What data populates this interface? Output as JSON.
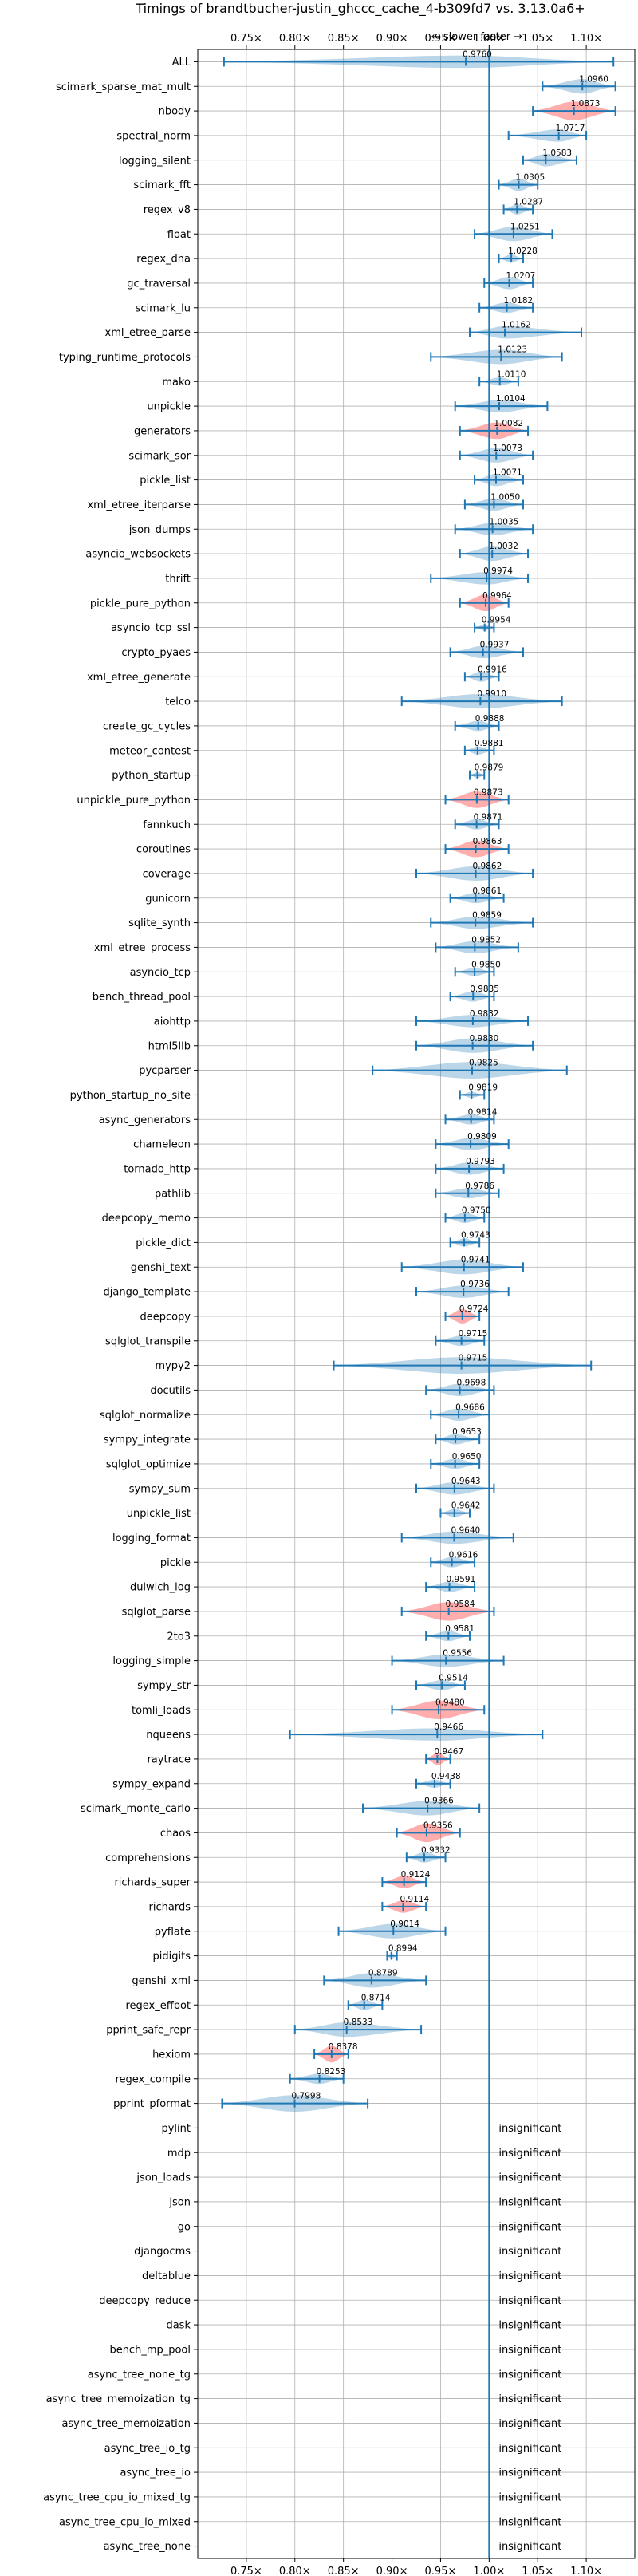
{
  "chart_data": {
    "type": "violin",
    "title": "Timings of brandtbucher-justin_ghccc_cache_4-b309fd7 vs. 3.13.0a6+",
    "annotation": "← slower    faster →",
    "xlim": [
      0.7,
      1.15
    ],
    "x_ticks": [
      0.75,
      0.8,
      0.85,
      0.9,
      0.95,
      1.0,
      1.05,
      1.1
    ],
    "x_tick_labels": [
      "0.75×",
      "0.80×",
      "0.85×",
      "0.90×",
      "0.95×",
      "1.00×",
      "1.05×",
      "1.10×"
    ],
    "grid": true,
    "reference_line": 1.0,
    "colors": {
      "faster": "#1f77b4",
      "slower": "#ff0000",
      "errorbar": "#1f77b4"
    },
    "insignificant_label": "insignificant",
    "benchmarks": [
      {
        "name": "ALL",
        "value": 0.976,
        "label": "0.9760",
        "ci": [
          0.727,
          1.128
        ],
        "width": 0.6,
        "slower": false
      },
      {
        "name": "scimark_sparse_mat_mult",
        "value": 1.096,
        "label": "1.0960",
        "ci": [
          1.055,
          1.13
        ],
        "width": 0.7,
        "slower": false
      },
      {
        "name": "nbody",
        "value": 1.0873,
        "label": "1.0873",
        "ci": [
          1.045,
          1.13
        ],
        "width": 0.9,
        "slower": true
      },
      {
        "name": "spectral_norm",
        "value": 1.0717,
        "label": "1.0717",
        "ci": [
          1.02,
          1.1
        ],
        "width": 0.6,
        "slower": false
      },
      {
        "name": "logging_silent",
        "value": 1.0583,
        "label": "1.0583",
        "ci": [
          1.035,
          1.09
        ],
        "width": 0.6,
        "slower": false
      },
      {
        "name": "scimark_fft",
        "value": 1.0305,
        "label": "1.0305",
        "ci": [
          1.01,
          1.05
        ],
        "width": 0.6,
        "slower": false
      },
      {
        "name": "regex_v8",
        "value": 1.0287,
        "label": "1.0287",
        "ci": [
          1.015,
          1.045
        ],
        "width": 0.5,
        "slower": false
      },
      {
        "name": "float",
        "value": 1.0251,
        "label": "1.0251",
        "ci": [
          0.985,
          1.065
        ],
        "width": 0.7,
        "slower": false
      },
      {
        "name": "regex_dna",
        "value": 1.0228,
        "label": "1.0228",
        "ci": [
          1.01,
          1.035
        ],
        "width": 0.4,
        "slower": false
      },
      {
        "name": "gc_traversal",
        "value": 1.0207,
        "label": "1.0207",
        "ci": [
          0.995,
          1.045
        ],
        "width": 0.6,
        "slower": false
      },
      {
        "name": "scimark_lu",
        "value": 1.0182,
        "label": "1.0182",
        "ci": [
          0.99,
          1.045
        ],
        "width": 0.5,
        "slower": false
      },
      {
        "name": "xml_etree_parse",
        "value": 1.0162,
        "label": "1.0162",
        "ci": [
          0.98,
          1.095
        ],
        "width": 0.6,
        "slower": false
      },
      {
        "name": "typing_runtime_protocols",
        "value": 1.0123,
        "label": "1.0123",
        "ci": [
          0.94,
          1.075
        ],
        "width": 0.7,
        "slower": false
      },
      {
        "name": "mako",
        "value": 1.011,
        "label": "1.0110",
        "ci": [
          0.99,
          1.03
        ],
        "width": 0.4,
        "slower": false
      },
      {
        "name": "unpickle",
        "value": 1.0104,
        "label": "1.0104",
        "ci": [
          0.965,
          1.06
        ],
        "width": 0.6,
        "slower": false
      },
      {
        "name": "generators",
        "value": 1.0082,
        "label": "1.0082",
        "ci": [
          0.97,
          1.04
        ],
        "width": 0.8,
        "slower": true
      },
      {
        "name": "scimark_sor",
        "value": 1.0073,
        "label": "1.0073",
        "ci": [
          0.97,
          1.045
        ],
        "width": 0.7,
        "slower": false
      },
      {
        "name": "pickle_list",
        "value": 1.0071,
        "label": "1.0071",
        "ci": [
          0.985,
          1.035
        ],
        "width": 0.6,
        "slower": false
      },
      {
        "name": "xml_etree_iterparse",
        "value": 1.005,
        "label": "1.0050",
        "ci": [
          0.975,
          1.035
        ],
        "width": 0.6,
        "slower": false
      },
      {
        "name": "json_dumps",
        "value": 1.0035,
        "label": "1.0035",
        "ci": [
          0.965,
          1.045
        ],
        "width": 0.6,
        "slower": false
      },
      {
        "name": "asyncio_websockets",
        "value": 1.0032,
        "label": "1.0032",
        "ci": [
          0.97,
          1.04
        ],
        "width": 0.7,
        "slower": false
      },
      {
        "name": "thrift",
        "value": 0.9974,
        "label": "0.9974",
        "ci": [
          0.94,
          1.04
        ],
        "width": 0.6,
        "slower": false
      },
      {
        "name": "pickle_pure_python",
        "value": 0.9964,
        "label": "0.9964",
        "ci": [
          0.97,
          1.02
        ],
        "width": 0.8,
        "slower": true
      },
      {
        "name": "asyncio_tcp_ssl",
        "value": 0.9954,
        "label": "0.9954",
        "ci": [
          0.985,
          1.005
        ],
        "width": 0.3,
        "slower": false
      },
      {
        "name": "crypto_pyaes",
        "value": 0.9937,
        "label": "0.9937",
        "ci": [
          0.96,
          1.035
        ],
        "width": 0.6,
        "slower": false
      },
      {
        "name": "xml_etree_generate",
        "value": 0.9916,
        "label": "0.9916",
        "ci": [
          0.975,
          1.01
        ],
        "width": 0.5,
        "slower": false
      },
      {
        "name": "telco",
        "value": 0.991,
        "label": "0.9910",
        "ci": [
          0.91,
          1.075
        ],
        "width": 0.7,
        "slower": false
      },
      {
        "name": "create_gc_cycles",
        "value": 0.9888,
        "label": "0.9888",
        "ci": [
          0.965,
          1.01
        ],
        "width": 0.5,
        "slower": false
      },
      {
        "name": "meteor_contest",
        "value": 0.9881,
        "label": "0.9881",
        "ci": [
          0.975,
          1.005
        ],
        "width": 0.4,
        "slower": false
      },
      {
        "name": "python_startup",
        "value": 0.9879,
        "label": "0.9879",
        "ci": [
          0.98,
          0.995
        ],
        "width": 0.3,
        "slower": false
      },
      {
        "name": "unpickle_pure_python",
        "value": 0.9873,
        "label": "0.9873",
        "ci": [
          0.955,
          1.02
        ],
        "width": 0.8,
        "slower": true
      },
      {
        "name": "fannkuch",
        "value": 0.9871,
        "label": "0.9871",
        "ci": [
          0.965,
          1.01
        ],
        "width": 0.5,
        "slower": false
      },
      {
        "name": "coroutines",
        "value": 0.9863,
        "label": "0.9863",
        "ci": [
          0.955,
          1.02
        ],
        "width": 0.8,
        "slower": true
      },
      {
        "name": "coverage",
        "value": 0.9862,
        "label": "0.9862",
        "ci": [
          0.925,
          1.045
        ],
        "width": 0.7,
        "slower": false
      },
      {
        "name": "gunicorn",
        "value": 0.9861,
        "label": "0.9861",
        "ci": [
          0.96,
          1.015
        ],
        "width": 0.5,
        "slower": false
      },
      {
        "name": "sqlite_synth",
        "value": 0.9859,
        "label": "0.9859",
        "ci": [
          0.94,
          1.045
        ],
        "width": 0.6,
        "slower": false
      },
      {
        "name": "xml_etree_process",
        "value": 0.9852,
        "label": "0.9852",
        "ci": [
          0.945,
          1.03
        ],
        "width": 0.6,
        "slower": false
      },
      {
        "name": "asyncio_tcp",
        "value": 0.985,
        "label": "0.9850",
        "ci": [
          0.965,
          1.005
        ],
        "width": 0.4,
        "slower": false
      },
      {
        "name": "bench_thread_pool",
        "value": 0.9835,
        "label": "0.9835",
        "ci": [
          0.96,
          1.005
        ],
        "width": 0.5,
        "slower": false
      },
      {
        "name": "aiohttp",
        "value": 0.9832,
        "label": "0.9832",
        "ci": [
          0.925,
          1.04
        ],
        "width": 0.6,
        "slower": false
      },
      {
        "name": "html5lib",
        "value": 0.983,
        "label": "0.9830",
        "ci": [
          0.925,
          1.045
        ],
        "width": 0.7,
        "slower": false
      },
      {
        "name": "pycparser",
        "value": 0.9825,
        "label": "0.9825",
        "ci": [
          0.88,
          1.08
        ],
        "width": 0.8,
        "slower": false
      },
      {
        "name": "python_startup_no_site",
        "value": 0.9819,
        "label": "0.9819",
        "ci": [
          0.97,
          0.995
        ],
        "width": 0.3,
        "slower": false
      },
      {
        "name": "async_generators",
        "value": 0.9814,
        "label": "0.9814",
        "ci": [
          0.955,
          1.005
        ],
        "width": 0.5,
        "slower": false
      },
      {
        "name": "chameleon",
        "value": 0.9809,
        "label": "0.9809",
        "ci": [
          0.945,
          1.02
        ],
        "width": 0.6,
        "slower": false
      },
      {
        "name": "tornado_http",
        "value": 0.9793,
        "label": "0.9793",
        "ci": [
          0.945,
          1.015
        ],
        "width": 0.6,
        "slower": false
      },
      {
        "name": "pathlib",
        "value": 0.9786,
        "label": "0.9786",
        "ci": [
          0.945,
          1.01
        ],
        "width": 0.5,
        "slower": false
      },
      {
        "name": "deepcopy_memo",
        "value": 0.975,
        "label": "0.9750",
        "ci": [
          0.955,
          0.995
        ],
        "width": 0.5,
        "slower": false
      },
      {
        "name": "pickle_dict",
        "value": 0.9743,
        "label": "0.9743",
        "ci": [
          0.96,
          0.99
        ],
        "width": 0.4,
        "slower": false
      },
      {
        "name": "genshi_text",
        "value": 0.9741,
        "label": "0.9741",
        "ci": [
          0.91,
          1.035
        ],
        "width": 0.7,
        "slower": false
      },
      {
        "name": "django_template",
        "value": 0.9736,
        "label": "0.9736",
        "ci": [
          0.925,
          1.02
        ],
        "width": 0.6,
        "slower": false
      },
      {
        "name": "deepcopy",
        "value": 0.9724,
        "label": "0.9724",
        "ci": [
          0.955,
          0.99
        ],
        "width": 0.7,
        "slower": true
      },
      {
        "name": "sqlglot_transpile",
        "value": 0.9715,
        "label": "0.9715",
        "ci": [
          0.945,
          0.995
        ],
        "width": 0.5,
        "slower": false
      },
      {
        "name": "mypy2",
        "value": 0.9715,
        "label": "0.9715",
        "ci": [
          0.84,
          1.105
        ],
        "width": 0.8,
        "slower": false
      },
      {
        "name": "docutils",
        "value": 0.9698,
        "label": "0.9698",
        "ci": [
          0.935,
          1.005
        ],
        "width": 0.6,
        "slower": false
      },
      {
        "name": "sqlglot_normalize",
        "value": 0.9686,
        "label": "0.9686",
        "ci": [
          0.94,
          1.0
        ],
        "width": 0.6,
        "slower": false
      },
      {
        "name": "sympy_integrate",
        "value": 0.9653,
        "label": "0.9653",
        "ci": [
          0.945,
          0.99
        ],
        "width": 0.5,
        "slower": false
      },
      {
        "name": "sqlglot_optimize",
        "value": 0.965,
        "label": "0.9650",
        "ci": [
          0.94,
          0.99
        ],
        "width": 0.5,
        "slower": false
      },
      {
        "name": "sympy_sum",
        "value": 0.9643,
        "label": "0.9643",
        "ci": [
          0.925,
          1.005
        ],
        "width": 0.6,
        "slower": false
      },
      {
        "name": "unpickle_list",
        "value": 0.9642,
        "label": "0.9642",
        "ci": [
          0.95,
          0.98
        ],
        "width": 0.4,
        "slower": false
      },
      {
        "name": "logging_format",
        "value": 0.964,
        "label": "0.9640",
        "ci": [
          0.91,
          1.025
        ],
        "width": 0.6,
        "slower": false
      },
      {
        "name": "pickle",
        "value": 0.9616,
        "label": "0.9616",
        "ci": [
          0.94,
          0.985
        ],
        "width": 0.5,
        "slower": false
      },
      {
        "name": "dulwich_log",
        "value": 0.9591,
        "label": "0.9591",
        "ci": [
          0.935,
          0.985
        ],
        "width": 0.5,
        "slower": false
      },
      {
        "name": "sqlglot_parse",
        "value": 0.9584,
        "label": "0.9584",
        "ci": [
          0.91,
          1.005
        ],
        "width": 0.9,
        "slower": true
      },
      {
        "name": "2to3",
        "value": 0.9581,
        "label": "0.9581",
        "ci": [
          0.935,
          0.98
        ],
        "width": 0.5,
        "slower": false
      },
      {
        "name": "logging_simple",
        "value": 0.9556,
        "label": "0.9556",
        "ci": [
          0.9,
          1.015
        ],
        "width": 0.6,
        "slower": false
      },
      {
        "name": "sympy_str",
        "value": 0.9514,
        "label": "0.9514",
        "ci": [
          0.925,
          0.975
        ],
        "width": 0.5,
        "slower": false
      },
      {
        "name": "tomli_loads",
        "value": 0.948,
        "label": "0.9480",
        "ci": [
          0.9,
          0.995
        ],
        "width": 0.9,
        "slower": true
      },
      {
        "name": "nqueens",
        "value": 0.9466,
        "label": "0.9466",
        "ci": [
          0.795,
          1.055
        ],
        "width": 0.6,
        "slower": false
      },
      {
        "name": "raytrace",
        "value": 0.9467,
        "label": "0.9467",
        "ci": [
          0.935,
          0.96
        ],
        "width": 0.6,
        "slower": true
      },
      {
        "name": "sympy_expand",
        "value": 0.9438,
        "label": "0.9438",
        "ci": [
          0.925,
          0.96
        ],
        "width": 0.4,
        "slower": false
      },
      {
        "name": "scimark_monte_carlo",
        "value": 0.9366,
        "label": "0.9366",
        "ci": [
          0.87,
          0.99
        ],
        "width": 0.7,
        "slower": false
      },
      {
        "name": "chaos",
        "value": 0.9356,
        "label": "0.9356",
        "ci": [
          0.905,
          0.97
        ],
        "width": 0.9,
        "slower": true
      },
      {
        "name": "comprehensions",
        "value": 0.9332,
        "label": "0.9332",
        "ci": [
          0.915,
          0.955
        ],
        "width": 0.5,
        "slower": false
      },
      {
        "name": "richards_super",
        "value": 0.9124,
        "label": "0.9124",
        "ci": [
          0.89,
          0.935
        ],
        "width": 0.6,
        "slower": true
      },
      {
        "name": "richards",
        "value": 0.9114,
        "label": "0.9114",
        "ci": [
          0.89,
          0.935
        ],
        "width": 0.6,
        "slower": true
      },
      {
        "name": "pyflate",
        "value": 0.9014,
        "label": "0.9014",
        "ci": [
          0.845,
          0.955
        ],
        "width": 0.7,
        "slower": false
      },
      {
        "name": "pidigits",
        "value": 0.8994,
        "label": "0.8994",
        "ci": [
          0.895,
          0.905
        ],
        "width": 0.3,
        "slower": false
      },
      {
        "name": "genshi_xml",
        "value": 0.8789,
        "label": "0.8789",
        "ci": [
          0.83,
          0.935
        ],
        "width": 0.7,
        "slower": false
      },
      {
        "name": "regex_effbot",
        "value": 0.8714,
        "label": "0.8714",
        "ci": [
          0.855,
          0.89
        ],
        "width": 0.5,
        "slower": false
      },
      {
        "name": "pprint_safe_repr",
        "value": 0.8533,
        "label": "0.8533",
        "ci": [
          0.8,
          0.93
        ],
        "width": 0.7,
        "slower": false
      },
      {
        "name": "hexiom",
        "value": 0.8378,
        "label": "0.8378",
        "ci": [
          0.82,
          0.855
        ],
        "width": 0.8,
        "slower": true
      },
      {
        "name": "regex_compile",
        "value": 0.8253,
        "label": "0.8253",
        "ci": [
          0.795,
          0.85
        ],
        "width": 0.5,
        "slower": false
      },
      {
        "name": "pprint_pformat",
        "value": 0.7998,
        "label": "0.7998",
        "ci": [
          0.725,
          0.875
        ],
        "width": 0.8,
        "slower": false
      }
    ],
    "insignificant": [
      "pylint",
      "mdp",
      "json_loads",
      "json",
      "go",
      "djangocms",
      "deltablue",
      "deepcopy_reduce",
      "dask",
      "bench_mp_pool",
      "async_tree_none_tg",
      "async_tree_memoization_tg",
      "async_tree_memoization",
      "async_tree_io_tg",
      "async_tree_io",
      "async_tree_cpu_io_mixed_tg",
      "async_tree_cpu_io_mixed",
      "async_tree_none"
    ]
  }
}
